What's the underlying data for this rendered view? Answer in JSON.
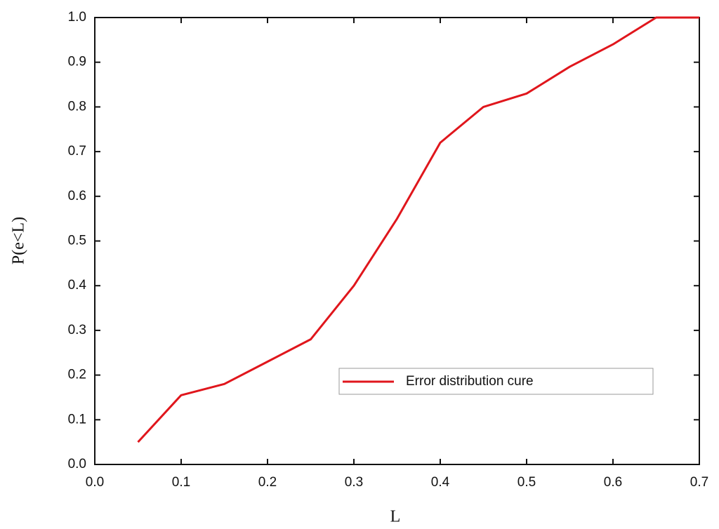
{
  "chart_data": {
    "type": "line",
    "x_label": "L",
    "y_label": "P(e<L)",
    "x": [
      0.05,
      0.1,
      0.15,
      0.2,
      0.25,
      0.3,
      0.35,
      0.4,
      0.45,
      0.5,
      0.55,
      0.6,
      0.65,
      0.7
    ],
    "series": [
      {
        "name": "Error distribution cure",
        "color": "#e0161c",
        "values": [
          0.05,
          0.155,
          0.18,
          0.23,
          0.28,
          0.4,
          0.55,
          0.72,
          0.8,
          0.83,
          0.89,
          0.94,
          1.0,
          1.0
        ]
      }
    ],
    "xlim": [
      0,
      0.7
    ],
    "xticks": [
      {
        "value": 0,
        "label": "0.0"
      },
      0.1,
      0.2,
      0.3,
      0.4,
      0.5,
      0.6,
      0.7
    ],
    "ylim": [
      0,
      1
    ],
    "yticks": [
      {
        "value": 0,
        "label": "0.0"
      },
      0.1,
      0.2,
      0.3,
      0.4,
      0.5,
      0.6,
      0.7,
      0.8,
      0.9,
      {
        "value": 1,
        "label": "1.0"
      }
    ],
    "grid": false,
    "legend": "lower right"
  }
}
